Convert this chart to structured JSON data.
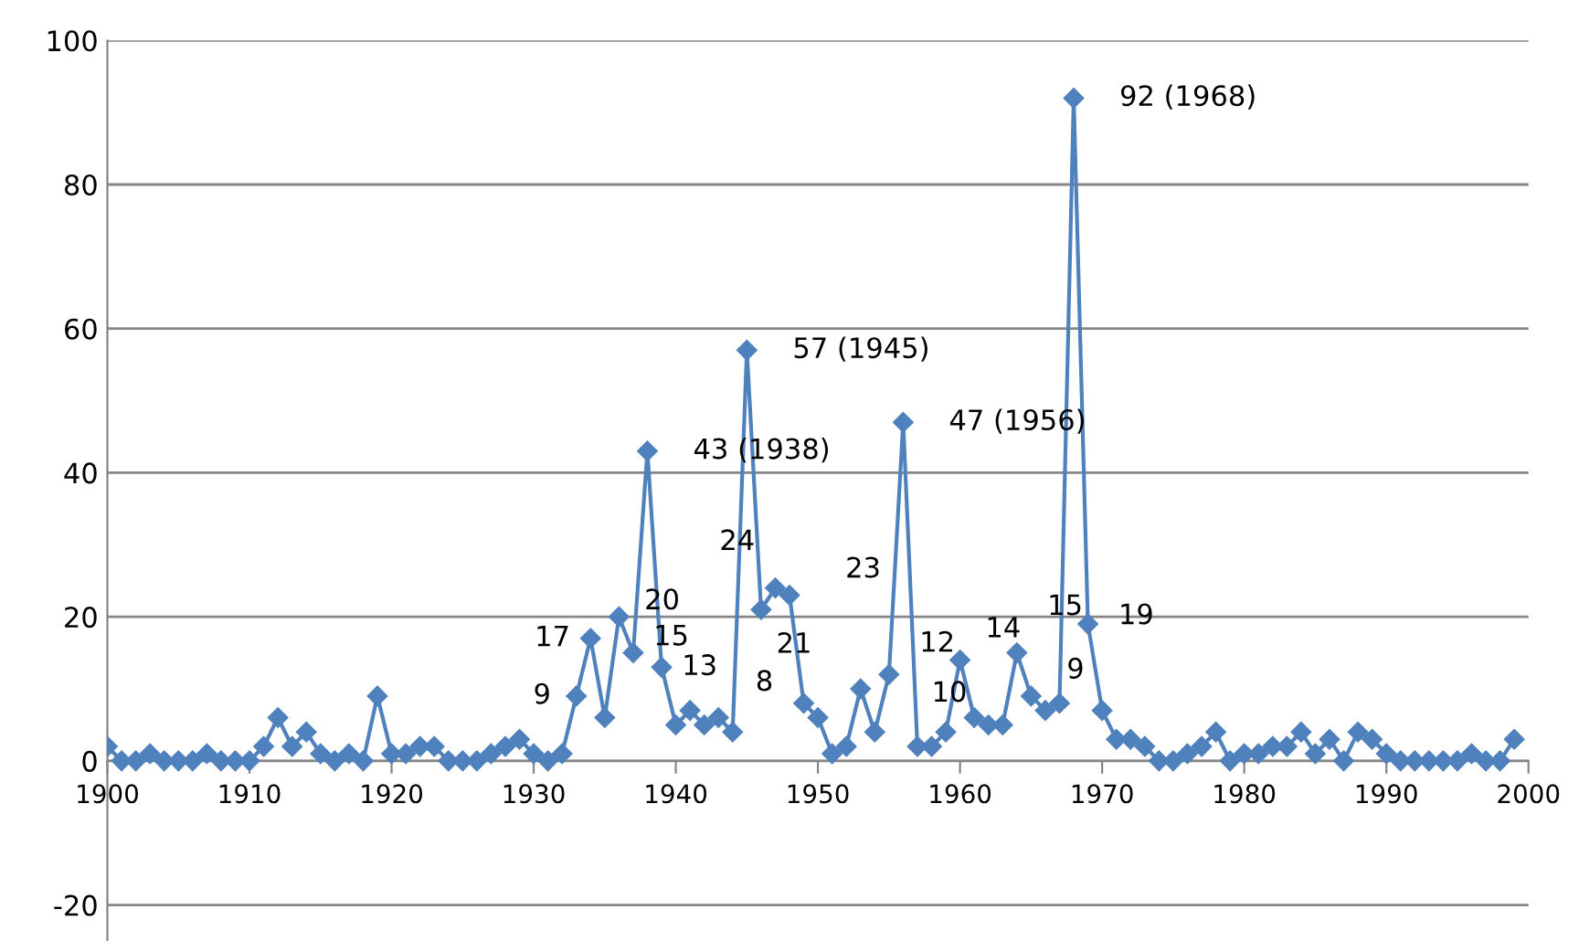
{
  "chart_data": {
    "type": "line",
    "x": [
      1900,
      1901,
      1902,
      1903,
      1904,
      1905,
      1906,
      1907,
      1908,
      1909,
      1910,
      1911,
      1912,
      1913,
      1914,
      1915,
      1916,
      1917,
      1918,
      1919,
      1920,
      1921,
      1922,
      1923,
      1924,
      1925,
      1926,
      1927,
      1928,
      1929,
      1930,
      1931,
      1932,
      1933,
      1934,
      1935,
      1936,
      1937,
      1938,
      1939,
      1940,
      1941,
      1942,
      1943,
      1944,
      1945,
      1946,
      1947,
      1948,
      1949,
      1950,
      1951,
      1952,
      1953,
      1954,
      1955,
      1956,
      1957,
      1958,
      1959,
      1960,
      1961,
      1962,
      1963,
      1964,
      1965,
      1966,
      1967,
      1968,
      1969,
      1970,
      1971,
      1972,
      1973,
      1974,
      1975,
      1976,
      1977,
      1978,
      1979,
      1980,
      1981,
      1982,
      1983,
      1984,
      1985,
      1986,
      1987,
      1988,
      1989,
      1990,
      1991,
      1992,
      1993,
      1994,
      1995,
      1996,
      1997,
      1998,
      1999
    ],
    "series": [
      {
        "color": "#4f81bd",
        "values": [
          2,
          0,
          0,
          1,
          0,
          0,
          0,
          1,
          0,
          0,
          0,
          2,
          6,
          2,
          4,
          1,
          0,
          1,
          0,
          9,
          1,
          1,
          2,
          2,
          0,
          0,
          0,
          1,
          2,
          3,
          1,
          0,
          1,
          9,
          17,
          6,
          20,
          15,
          43,
          13,
          5,
          7,
          5,
          6,
          4,
          57,
          21,
          24,
          23,
          8,
          6,
          1,
          2,
          10,
          4,
          12,
          47,
          2,
          2,
          4,
          14,
          6,
          5,
          5,
          15,
          9,
          7,
          8,
          92,
          19,
          7,
          3,
          3,
          2,
          0,
          0,
          1,
          2,
          4,
          0,
          1,
          1,
          2,
          2,
          4,
          1,
          3,
          0,
          4,
          3,
          1,
          0,
          0,
          0,
          0,
          0,
          1,
          0,
          0,
          3
        ]
      }
    ],
    "marker": "diamond",
    "line_style": "solid",
    "grid": "y",
    "legend": false,
    "xlim": [
      1900,
      2000
    ],
    "xticks": [
      1900,
      1910,
      1920,
      1930,
      1940,
      1950,
      1960,
      1970,
      1980,
      1990,
      2000
    ],
    "ylim": [
      -25,
      100
    ],
    "yticks": [
      -20,
      0,
      20,
      40,
      60,
      80,
      100
    ],
    "annotations": [
      {
        "text": "9",
        "x": 1933,
        "y": 9
      },
      {
        "text": "17",
        "x": 1934,
        "y": 17
      },
      {
        "text": "20",
        "x": 1936,
        "y": 20
      },
      {
        "text": "15",
        "x": 1937,
        "y": 15
      },
      {
        "text": "43 (1938)",
        "x": 1938,
        "y": 43
      },
      {
        "text": "13",
        "x": 1939,
        "y": 13
      },
      {
        "text": "57 (1945)",
        "x": 1945,
        "y": 57
      },
      {
        "text": "21",
        "x": 1946,
        "y": 21
      },
      {
        "text": "24",
        "x": 1947,
        "y": 24
      },
      {
        "text": "23",
        "x": 1948,
        "y": 23
      },
      {
        "text": "8",
        "x": 1949,
        "y": 8
      },
      {
        "text": "10",
        "x": 1953,
        "y": 10
      },
      {
        "text": "12",
        "x": 1955,
        "y": 12
      },
      {
        "text": "47 (1956)",
        "x": 1956,
        "y": 47
      },
      {
        "text": "14",
        "x": 1960,
        "y": 14
      },
      {
        "text": "15",
        "x": 1964,
        "y": 15
      },
      {
        "text": "9",
        "x": 1965,
        "y": 9
      },
      {
        "text": "92 (1968)",
        "x": 1968,
        "y": 92
      },
      {
        "text": "19",
        "x": 1969,
        "y": 19
      }
    ]
  }
}
